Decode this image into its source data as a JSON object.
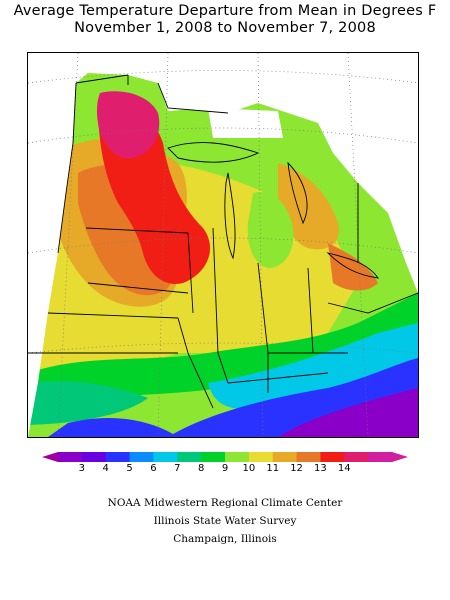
{
  "title": {
    "line1": "Average Temperature Departure from Mean in Degrees F",
    "line2": "November 1, 2008 to November 7, 2008"
  },
  "colorbar": {
    "ticks": [
      "3",
      "4",
      "5",
      "6",
      "7",
      "8",
      "9",
      "10",
      "11",
      "12",
      "13",
      "14"
    ],
    "colors": [
      "#8b00c8",
      "#6a00e0",
      "#2a32ff",
      "#0a8cff",
      "#00c8e6",
      "#00c878",
      "#00d22a",
      "#8ce632",
      "#e6dc32",
      "#e6aa28",
      "#e67828",
      "#f01e14",
      "#e01e6e",
      "#d21ea0"
    ],
    "low_color": "#a000a0",
    "high_color": "#d21ea0"
  },
  "map": {
    "region": "Midwest",
    "legend": "temperature-departure-colorbar"
  },
  "credits": {
    "line1": "NOAA Midwestern Regional Climate Center",
    "line2": "Illinois State Water Survey",
    "line3": "Champaign, Illinois"
  }
}
